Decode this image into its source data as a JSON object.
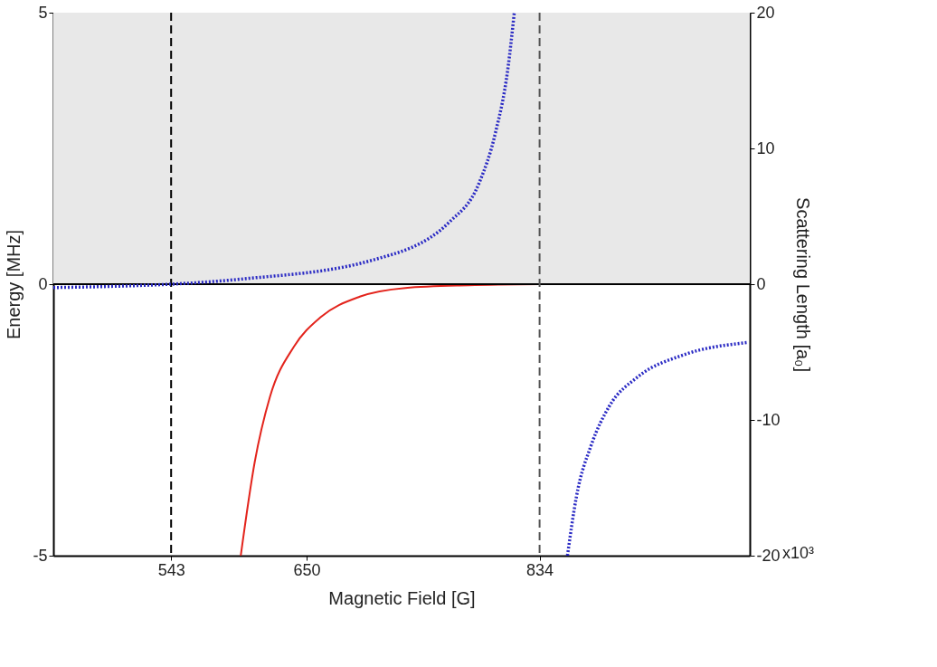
{
  "chart_data": {
    "type": "line",
    "xlabel": "Magnetic Field [G]",
    "ylabel": "Energy [MHz]",
    "y2label": "Scattering Length [a₀]",
    "xlim": [
      450,
      1000
    ],
    "xticks": [
      543,
      650,
      834
    ],
    "ylim": [
      -5,
      5
    ],
    "yticks": [
      -5,
      0,
      5
    ],
    "y2lim": [
      -20,
      20
    ],
    "y2ticks": [
      -20,
      -10,
      0,
      10,
      20
    ],
    "annotations": [
      "x10³"
    ],
    "grid": false,
    "series": [
      {
        "color": "#e3241c",
        "line_style": "solid",
        "x": [
          598,
          609,
          621,
          640,
          661,
          692,
          728,
          778,
          834
        ],
        "values": [
          -5,
          -3.28,
          -2.08,
          -1.15,
          -0.61,
          -0.23,
          -0.07,
          -0.02,
          0
        ]
      },
      {
        "color": "#2a2ac4",
        "line_style": "dotted",
        "axis": "y2",
        "x": [
          450,
          500,
          543,
          600,
          702,
          763,
          786,
          799,
          809,
          814,
          834,
          856,
          863,
          875,
          889,
          912,
          948,
          998
        ],
        "values": [
          -0.25,
          -0.15,
          0,
          0.39,
          1.77,
          4.6,
          7.4,
          11.1,
          15.9,
          20,
          null,
          -20,
          -15.7,
          -11.8,
          -9.0,
          -6.8,
          -5.2,
          -4.3
        ]
      }
    ],
    "ref_lines": [
      {
        "axis": "y",
        "value": 0,
        "color": "#000000",
        "line_style": "solid"
      },
      {
        "axis": "x",
        "value": 543,
        "color": "#000000",
        "line_style": "dashed"
      },
      {
        "axis": "x",
        "value": 834,
        "color": "#555555",
        "line_style": "dashed"
      }
    ],
    "bands": [
      {
        "axis": "y",
        "from": 0,
        "to": 5,
        "color": "#e8e8e8"
      }
    ]
  }
}
